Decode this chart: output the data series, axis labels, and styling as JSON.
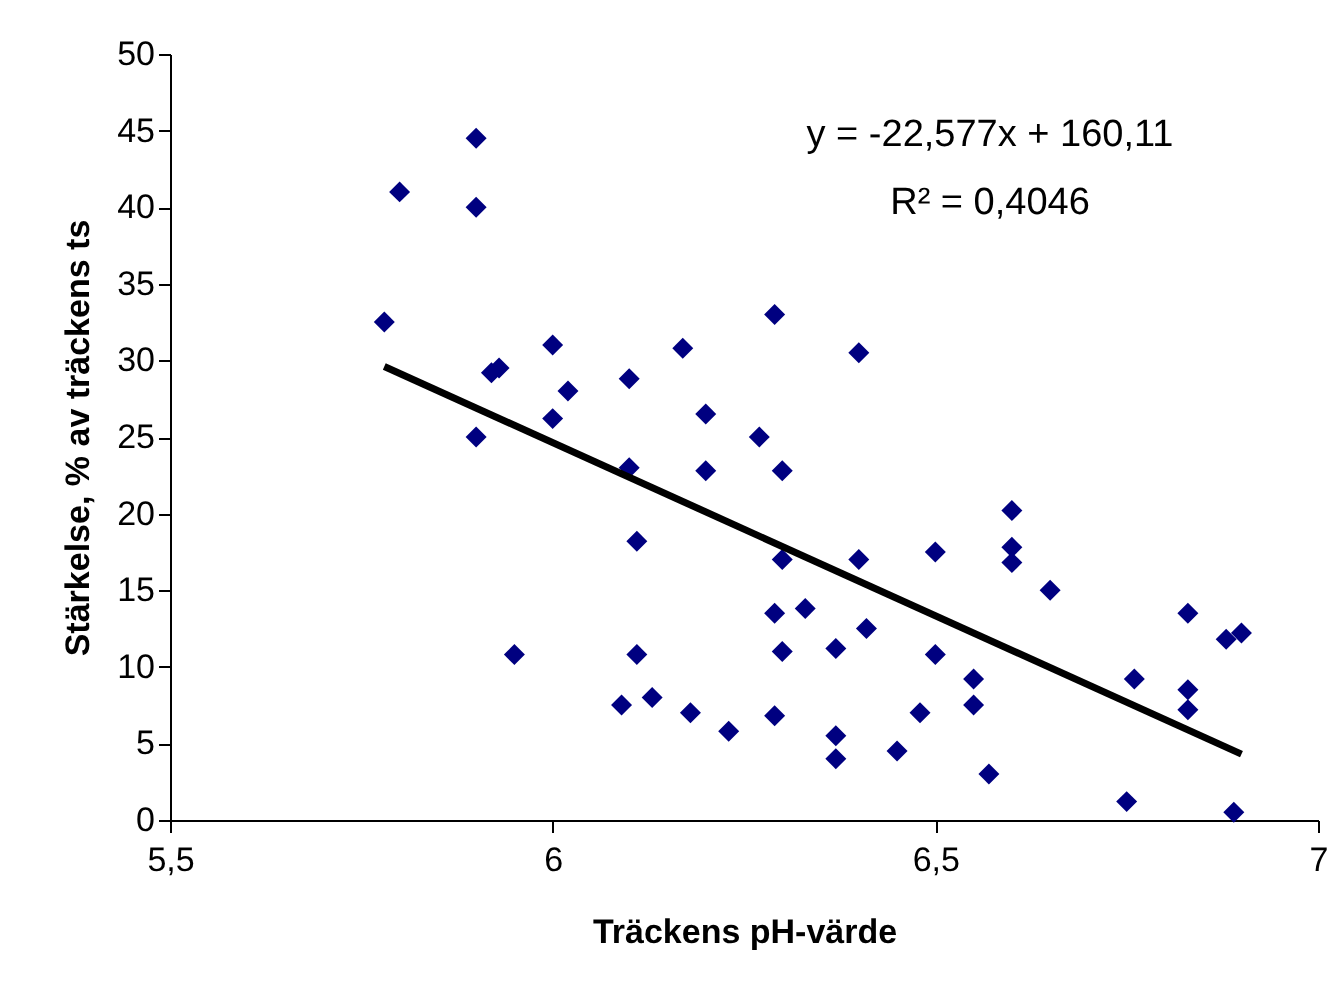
{
  "chart_data": {
    "type": "scatter",
    "xlabel": "Träckens pH-värde",
    "ylabel": "Stärkelse, % av träckens ts",
    "grid": false,
    "xlim": [
      5.5,
      7
    ],
    "xticks": [
      {
        "value": 5.5,
        "label": "5,5"
      },
      {
        "value": 6,
        "label": "6"
      },
      {
        "value": 6.5,
        "label": "6,5"
      },
      {
        "value": 7,
        "label": "7"
      }
    ],
    "ylim": [
      0,
      50
    ],
    "yticks": [
      0,
      5,
      10,
      15,
      20,
      25,
      30,
      35,
      40,
      45,
      50
    ],
    "annotations": [
      "y = -22,577x + 160,11",
      "R² = 0,4046"
    ],
    "series": [
      {
        "marker": "diamond",
        "color": "#000080",
        "x": [
          5.78,
          5.8,
          5.9,
          5.9,
          5.9,
          5.92,
          5.93,
          5.95,
          6.0,
          6.0,
          6.02,
          6.09,
          6.1,
          6.1,
          6.11,
          6.11,
          6.13,
          6.17,
          6.18,
          6.2,
          6.2,
          6.23,
          6.27,
          6.29,
          6.29,
          6.29,
          6.3,
          6.3,
          6.3,
          6.33,
          6.37,
          6.37,
          6.37,
          6.4,
          6.4,
          6.41,
          6.45,
          6.48,
          6.5,
          6.5,
          6.55,
          6.55,
          6.57,
          6.6,
          6.6,
          6.6,
          6.65,
          6.75,
          6.76,
          6.83,
          6.83,
          6.83,
          6.88,
          6.89,
          6.9
        ],
        "values": [
          32.5,
          41,
          44.5,
          40,
          25,
          29.2,
          29.5,
          10.8,
          31,
          26.2,
          28,
          7.5,
          28.8,
          23,
          18.2,
          10.8,
          8,
          30.8,
          7,
          26.5,
          22.8,
          5.8,
          25,
          33,
          13.5,
          6.8,
          22.8,
          17,
          11,
          13.8,
          11.2,
          5.5,
          4,
          30.5,
          17,
          12.5,
          4.5,
          7,
          17.5,
          10.8,
          9.2,
          7.5,
          3,
          20.2,
          17.8,
          16.8,
          15,
          1.2,
          9.2,
          13.5,
          8.5,
          7.2,
          11.8,
          0.5,
          12.2
        ]
      },
      {
        "type": "line",
        "marker": "none",
        "color": "#000000",
        "x": [
          5.78,
          6.9
        ],
        "values": [
          29.6,
          4.3
        ]
      }
    ]
  }
}
